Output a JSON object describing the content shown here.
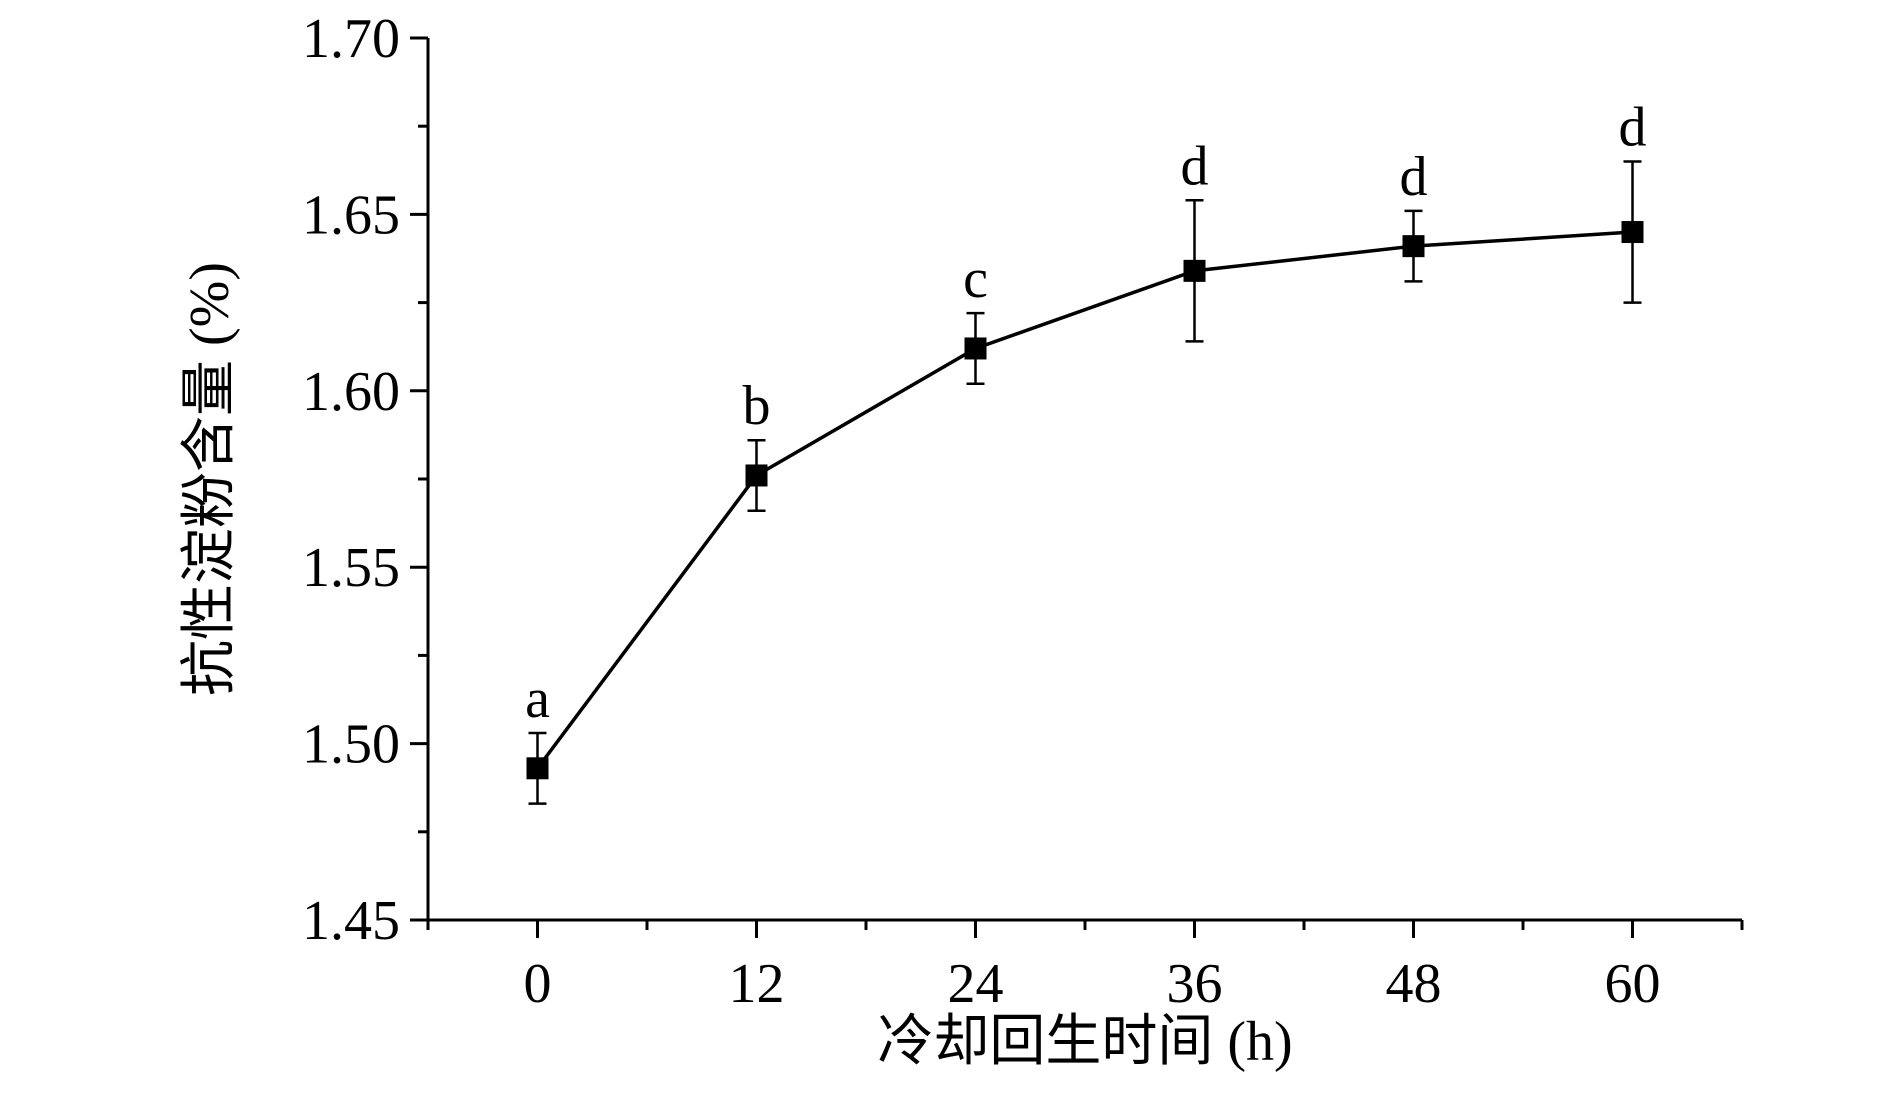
{
  "chart_data": {
    "type": "line",
    "title": "",
    "xlabel": "冷却回生时间 (h)",
    "ylabel": "抗性淀粉含量 (%)",
    "x": [
      0,
      12,
      24,
      36,
      48,
      60
    ],
    "xlim": [
      -6,
      66
    ],
    "ylim": [
      1.45,
      1.7
    ],
    "x_ticks": [
      0,
      12,
      24,
      36,
      48,
      60
    ],
    "x_tick_labels": [
      "0",
      "12",
      "24",
      "36",
      "48",
      "60"
    ],
    "y_ticks": [
      1.45,
      1.5,
      1.55,
      1.6,
      1.65,
      1.7
    ],
    "y_tick_labels": [
      "1.45",
      "1.50",
      "1.55",
      "1.60",
      "1.65",
      "1.70"
    ],
    "grid": false,
    "legend": "none",
    "series": [
      {
        "values": [
          1.493,
          1.576,
          1.612,
          1.634,
          1.641,
          1.645
        ],
        "error": [
          0.01,
          0.01,
          0.01,
          0.02,
          0.01,
          0.02
        ],
        "labels": [
          "a",
          "b",
          "c",
          "d",
          "d",
          "d"
        ],
        "marker": "square",
        "color": "#000000"
      }
    ]
  }
}
